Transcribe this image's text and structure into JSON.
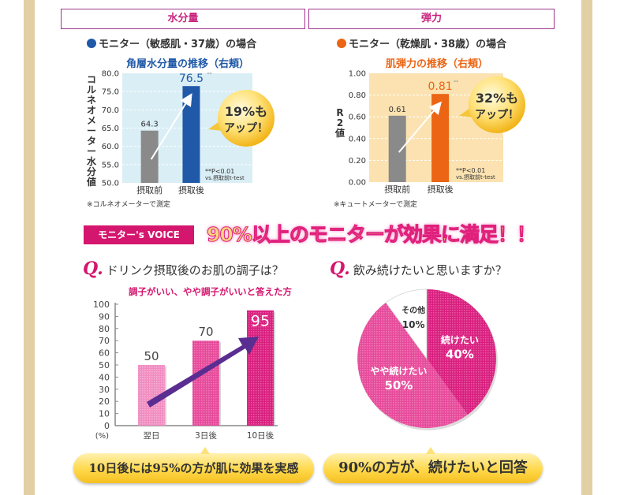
{
  "colors": {
    "magenta": "#d4166e",
    "border": "#a0358e",
    "blue": "#2059a8",
    "orange": "#eb6514",
    "gray": "#8a8a8a",
    "light_blue": "#daeef5",
    "light_orange": "#fbe2b0",
    "purple": "#5a2d91"
  },
  "sections": {
    "left_title": "水分量",
    "right_title": "弾力"
  },
  "chart_data": [
    {
      "type": "bar",
      "monitor": "モニター（敏感肌・37歳）の場合",
      "title": "角層水分量の推移（右頬）",
      "ylabel": "コルネオメーター水分値",
      "categories": [
        "摂取前",
        "摂取後"
      ],
      "values": [
        64.3,
        76.5
      ],
      "value_labels": [
        "64.3",
        "76.5"
      ],
      "significance": "**",
      "ylim": [
        50,
        80
      ],
      "yticks": [
        "50.0",
        "55.0",
        "60.0",
        "65.0",
        "70.0",
        "75.0",
        "80.0"
      ],
      "grid": true,
      "badge_line1": "19%も",
      "badge_line2": "アップ！",
      "stat_line1": "**P<0.01",
      "stat_line2": "vs.摂取前t-test",
      "footnote": "※コルネオメーターで測定"
    },
    {
      "type": "bar",
      "monitor": "モニター（乾燥肌・38歳）の場合",
      "title": "肌弾力の推移（右頬）",
      "ylabel": "R2値",
      "categories": [
        "摂取前",
        "摂取後"
      ],
      "values": [
        0.61,
        0.81
      ],
      "value_labels": [
        "0.61",
        "0.81"
      ],
      "significance": "**",
      "ylim": [
        0,
        1
      ],
      "yticks": [
        "0.00",
        "0.20",
        "0.40",
        "0.60",
        "0.80",
        "1.00"
      ],
      "grid": true,
      "badge_line1": "32%も",
      "badge_line2": "アップ！",
      "stat_line1": "**P<0.01",
      "stat_line2": "vs.摂取前t-test",
      "footnote": "※キュートメーターで測定"
    },
    {
      "type": "bar",
      "question": "ドリンク摂取後のお肌の調子は？",
      "title": "調子がいい、やや調子がいいと答えた方",
      "categories": [
        "翌日",
        "3日後",
        "10日後"
      ],
      "values": [
        50,
        70,
        95
      ],
      "value_labels": [
        "50",
        "70",
        "95"
      ],
      "ylim": [
        0,
        100
      ],
      "yticks": [
        "0",
        "10",
        "20",
        "30",
        "40",
        "50",
        "60",
        "70",
        "80",
        "90",
        "100"
      ],
      "yunit": "(%)",
      "summary": "10日後には95%の方が肌に効果を実感"
    },
    {
      "type": "pie",
      "question": "飲み続けたいと思いますか？",
      "slices": [
        {
          "label": "続けたい",
          "value": 40,
          "text": "40%"
        },
        {
          "label": "やや続けたい",
          "value": 50,
          "text": "50%"
        },
        {
          "label": "その他",
          "value": 10,
          "text": "10%"
        }
      ],
      "summary": "90%の方が、続けたいと回答"
    }
  ],
  "voice": {
    "badge": "モニター's VOICE",
    "headline": "90%以上のモニターが効果に満足！！",
    "q_mark": "Q."
  }
}
